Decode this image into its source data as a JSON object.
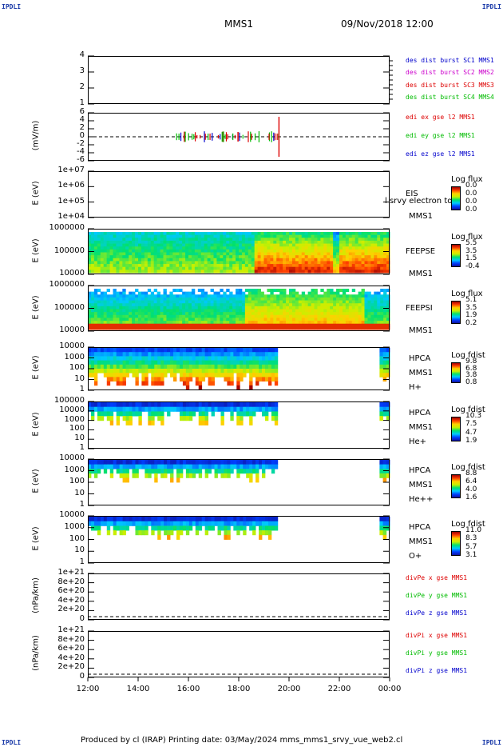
{
  "header": {
    "corner_left": "IPDLI",
    "corner_right": "IPDLI",
    "spacecraft": "MMS1",
    "datetime": "09/Nov/2018 12:00"
  },
  "chart_data": {
    "type": "heatmap",
    "x_axis": {
      "tick_labels": [
        "12:00",
        "14:00",
        "16:00",
        "18:00",
        "20:00",
        "22:00",
        "00:00"
      ],
      "range_hours": [
        12,
        24
      ]
    },
    "panels": [
      {
        "id": "spacecraft-position",
        "ylabel": "",
        "ticks": [
          "4",
          "3",
          "2",
          "1"
        ],
        "legend": [
          {
            "text": "des dist burst SC1 MMS1",
            "color": "#0000cc"
          },
          {
            "text": "des dist burst SC2 MMS2",
            "color": "#cc00cc"
          },
          {
            "text": "des dist burst SC3 MMS3",
            "color": "#dd0000"
          },
          {
            "text": "des dist burst SC4 MMS4",
            "color": "#00bb00"
          }
        ]
      },
      {
        "id": "electric-field",
        "ylabel": "(mV/m)",
        "ticks": [
          "6",
          "4",
          "2",
          "0",
          "-2",
          "-4",
          "-6"
        ],
        "legend": [
          {
            "text": "edi ex gse l2 MMS1",
            "color": "#dd0000"
          },
          {
            "text": "edi ey gse l2 MMS1",
            "color": "#00bb00"
          },
          {
            "text": "edi ez gse l2 MMS1",
            "color": "#0000cc"
          }
        ],
        "active_interval_hours": [
          15.5,
          19.7
        ]
      },
      {
        "id": "eis",
        "ylabel": "E (eV)",
        "ticks": [
          "1e+07",
          "1e+06",
          "1e+05",
          "1e+04"
        ],
        "instrument": "EIS",
        "sub": "MMS1",
        "overlay": "l srvy electron to",
        "cbar_title": "Log flux",
        "cbar_ticks": [
          "0.0",
          "0.0",
          "0.0",
          "0.0"
        ]
      },
      {
        "id": "feepse",
        "ylabel": "E (eV)",
        "ticks": [
          "1000000",
          "100000",
          "10000"
        ],
        "instrument": "FEEPSE",
        "sub": "MMS1",
        "cbar_title": "Log flux",
        "cbar_ticks": [
          "5.5",
          "3.5",
          "1.5",
          "-0.4"
        ]
      },
      {
        "id": "feepsi",
        "ylabel": "E (eV)",
        "ticks": [
          "1000000",
          "100000",
          "10000"
        ],
        "instrument": "FEEPSI",
        "sub": "MMS1",
        "cbar_title": "Log flux",
        "cbar_ticks": [
          "5.1",
          "3.5",
          "1.9",
          "0.2"
        ]
      },
      {
        "id": "hpca-h",
        "ylabel": "E (eV)",
        "ticks": [
          "10000",
          "1000",
          "100",
          "10",
          "1"
        ],
        "instrument": "HPCA",
        "sub": "MMS1",
        "species": "H+",
        "cbar_title": "Log fdist",
        "cbar_ticks": [
          "9.8",
          "6.8",
          "3.8",
          "0.8"
        ],
        "data_intervals_hours": [
          [
            12.0,
            19.55
          ],
          [
            23.6,
            24.0
          ]
        ]
      },
      {
        "id": "hpca-he",
        "ylabel": "E (eV)",
        "ticks": [
          "100000",
          "10000",
          "1000",
          "100",
          "10",
          "1"
        ],
        "instrument": "HPCA",
        "sub": "MMS1",
        "species": "He+",
        "cbar_title": "Log fdist",
        "cbar_ticks": [
          "10.3",
          "7.5",
          "4.7",
          "1.9"
        ],
        "data_intervals_hours": [
          [
            12.0,
            19.55
          ],
          [
            23.6,
            24.0
          ]
        ]
      },
      {
        "id": "hpca-he2",
        "ylabel": "E (eV)",
        "ticks": [
          "10000",
          "1000",
          "100",
          "10",
          "1"
        ],
        "instrument": "HPCA",
        "sub": "MMS1",
        "species": "He++",
        "cbar_title": "Log fdist",
        "cbar_ticks": [
          "8.8",
          "6.4",
          "4.0",
          "1.6"
        ],
        "data_intervals_hours": [
          [
            12.0,
            19.55
          ],
          [
            23.6,
            24.0
          ]
        ]
      },
      {
        "id": "hpca-o",
        "ylabel": "E (eV)",
        "ticks": [
          "10000",
          "1000",
          "100",
          "10",
          "1"
        ],
        "instrument": "HPCA",
        "sub": "MMS1",
        "species": "O+",
        "cbar_title": "Log fdist",
        "cbar_ticks": [
          "11.0",
          "8.3",
          "5.7",
          "3.1"
        ],
        "data_intervals_hours": [
          [
            12.0,
            19.55
          ],
          [
            23.6,
            24.0
          ]
        ]
      },
      {
        "id": "divpe",
        "ylabel": "(nPa/km)",
        "ticks": [
          "1e+21",
          "8e+20",
          "6e+20",
          "4e+20",
          "2e+20",
          "0"
        ],
        "legend": [
          {
            "text": "divPe x gse MMS1",
            "color": "#dd0000"
          },
          {
            "text": "divPe y gse MMS1",
            "color": "#00bb00"
          },
          {
            "text": "divPe z gse MMS1",
            "color": "#0000cc"
          }
        ]
      },
      {
        "id": "divpi",
        "ylabel": "(nPa/km)",
        "ticks": [
          "1e+21",
          "8e+20",
          "6e+20",
          "4e+20",
          "2e+20",
          "0"
        ],
        "legend": [
          {
            "text": "divPi x gse MMS1",
            "color": "#dd0000"
          },
          {
            "text": "divPi y gse MMS1",
            "color": "#00bb00"
          },
          {
            "text": "divPi z gse MMS1",
            "color": "#0000cc"
          }
        ]
      }
    ]
  },
  "footer": {
    "corner_left": "IPDLI",
    "corner_right": "IPDLI",
    "text": "Produced by cl (IRAP)   Printing date: 03/May/2024   mms_mms1_srvy_vue_web2.cl"
  }
}
